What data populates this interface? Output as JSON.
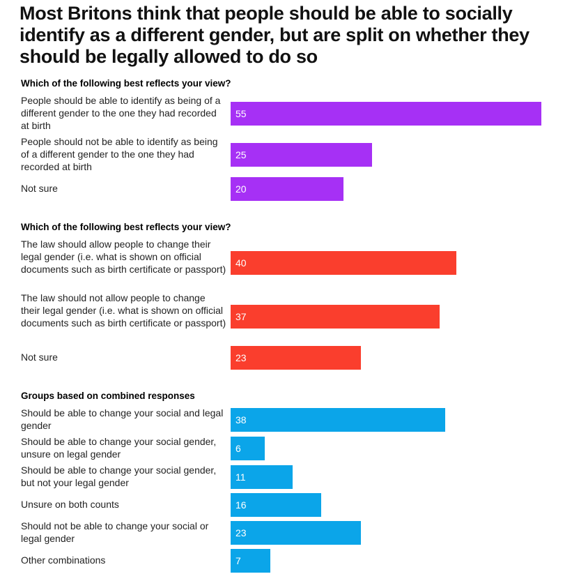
{
  "title": "Most Britons think that people should be able to socially identify as a different gender, but are split on whether they should be legally allowed to do so",
  "colors": {
    "purple": "#a630f5",
    "red": "#fa3e2d",
    "blue": "#0ba5e9"
  },
  "chart_data": [
    {
      "type": "bar",
      "orientation": "horizontal",
      "title": "Which of the following best reflects your view?",
      "color": "#a630f5",
      "xlim": [
        0,
        55
      ],
      "categories": [
        "People should be able to identify as being of a different gender to the one they had recorded at birth",
        "People should not be able to identify as being of a different gender to the one they had recorded at birth",
        "Not sure"
      ],
      "values": [
        55,
        25,
        20
      ]
    },
    {
      "type": "bar",
      "orientation": "horizontal",
      "title": "Which of the following best reflects your view?",
      "color": "#fa3e2d",
      "xlim": [
        0,
        55
      ],
      "categories": [
        "The law should allow people to change their legal gender (i.e. what is shown on official documents such as birth certificate or passport)",
        "The law should not allow people to change their legal gender (i.e. what is shown on official documents such as birth certificate or passport)",
        "Not sure"
      ],
      "values": [
        40,
        37,
        23
      ]
    },
    {
      "type": "bar",
      "orientation": "horizontal",
      "title": "Groups based on combined responses",
      "color": "#0ba5e9",
      "xlim": [
        0,
        55
      ],
      "categories": [
        "Should be able to change your social and legal gender",
        "Should be able to change your social gender, unsure on legal gender",
        "Should be able to change your social gender, but not your legal gender",
        "Unsure on both counts",
        "Should not be able to change your social or legal gender",
        "Other combinations"
      ],
      "values": [
        38,
        6,
        11,
        16,
        23,
        7
      ]
    }
  ]
}
